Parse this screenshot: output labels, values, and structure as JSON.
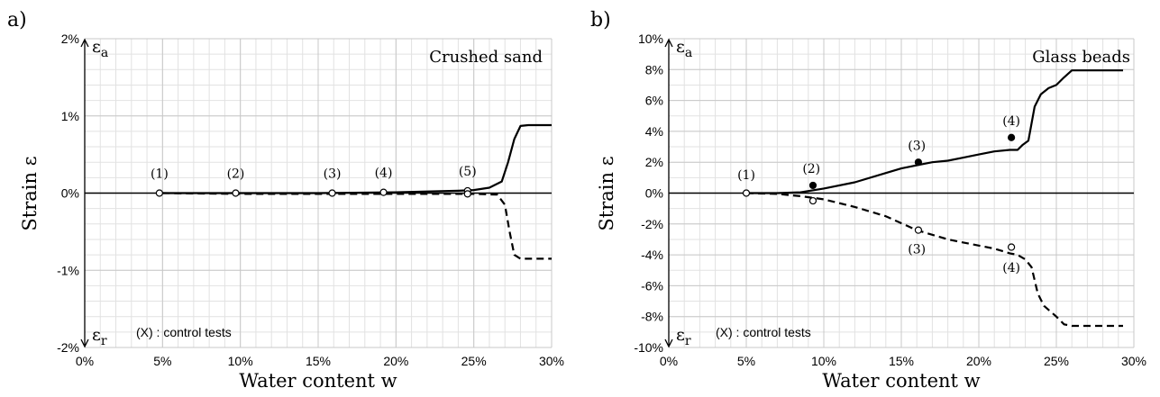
{
  "chart_data": [
    {
      "type": "line",
      "panel_label": "a)",
      "title": "Crushed sand",
      "xlabel": "Water content w",
      "ylabel": "Strain ε",
      "xlim": [
        0,
        30
      ],
      "ylim": [
        -2,
        2
      ],
      "x_ticks": [
        "0%",
        "5%",
        "10%",
        "15%",
        "20%",
        "25%",
        "30%"
      ],
      "y_ticks": [
        "-2%",
        "-1%",
        "0%",
        "1%",
        "2%"
      ],
      "y_tick_values": [
        -2,
        -1,
        0,
        1,
        2
      ],
      "minor_grid_x_step": 1,
      "minor_grid_y_step": 0.2,
      "top_axis_label": "ε",
      "top_axis_sub": "a",
      "bottom_axis_label": "ε",
      "bottom_axis_sub": "r",
      "note": "(X) : control tests",
      "series": [
        {
          "style": "solid",
          "x": [
            5,
            10,
            15,
            20,
            24,
            25,
            26,
            26.8,
            27.2,
            27.6,
            28,
            28.5,
            30
          ],
          "y": [
            0,
            0,
            0,
            0.01,
            0.03,
            0.04,
            0.07,
            0.15,
            0.4,
            0.7,
            0.87,
            0.88,
            0.88
          ]
        },
        {
          "style": "dashed",
          "x": [
            5,
            10,
            15,
            20,
            24,
            25,
            26.5,
            27,
            27.3,
            27.6,
            28,
            28.3,
            30
          ],
          "y": [
            0,
            -0.01,
            -0.01,
            -0.01,
            -0.01,
            -0.01,
            -0.02,
            -0.15,
            -0.5,
            -0.8,
            -0.85,
            -0.85,
            -0.85
          ]
        }
      ],
      "points": [
        {
          "x": 4.8,
          "y": 0,
          "filled": false
        },
        {
          "x": 9.7,
          "y": 0,
          "filled": false
        },
        {
          "x": 15.9,
          "y": 0,
          "filled": false
        },
        {
          "x": 19.2,
          "y": 0.01,
          "filled": false
        },
        {
          "x": 24.6,
          "y": 0.03,
          "filled": false
        },
        {
          "x": 24.6,
          "y": -0.01,
          "filled": false
        }
      ],
      "annotations": [
        {
          "text": "(1)",
          "x": 4.8,
          "y": 0.2
        },
        {
          "text": "(2)",
          "x": 9.7,
          "y": 0.2
        },
        {
          "text": "(3)",
          "x": 15.9,
          "y": 0.2
        },
        {
          "text": "(4)",
          "x": 19.2,
          "y": 0.21
        },
        {
          "text": "(5)",
          "x": 24.6,
          "y": 0.23
        }
      ]
    },
    {
      "type": "line",
      "panel_label": "b)",
      "title": "Glass beads",
      "xlabel": "Water content w",
      "ylabel": "Strain ε",
      "xlim": [
        0,
        30
      ],
      "ylim": [
        -10,
        10
      ],
      "x_ticks": [
        "0%",
        "5%",
        "10%",
        "15%",
        "20%",
        "25%",
        "30%"
      ],
      "y_ticks": [
        "-10%",
        "-8%",
        "-6%",
        "-4%",
        "-2%",
        "0%",
        "2%",
        "4%",
        "6%",
        "8%",
        "10%"
      ],
      "y_tick_values": [
        -10,
        -8,
        -6,
        -4,
        -2,
        0,
        2,
        4,
        6,
        8,
        10
      ],
      "minor_grid_x_step": 1,
      "minor_grid_y_step": 1,
      "top_axis_label": "ε",
      "top_axis_sub": "a",
      "bottom_axis_label": "ε",
      "bottom_axis_sub": "r",
      "note": "(X) : control tests",
      "series": [
        {
          "style": "solid",
          "x": [
            5,
            7,
            8.5,
            10,
            12,
            14,
            15,
            16,
            17,
            18,
            19,
            20,
            21,
            22,
            22.5,
            22.8,
            23.2,
            23.6,
            24,
            24.5,
            25,
            25.5,
            26,
            27,
            28,
            29.3
          ],
          "y": [
            0,
            0,
            0.05,
            0.3,
            0.7,
            1.3,
            1.6,
            1.8,
            2.0,
            2.1,
            2.3,
            2.5,
            2.7,
            2.8,
            2.8,
            3.1,
            3.4,
            5.6,
            6.4,
            6.8,
            7.0,
            7.5,
            7.95,
            7.95,
            7.95,
            7.95
          ]
        },
        {
          "style": "dashed",
          "x": [
            5,
            7,
            8.5,
            10,
            12,
            14,
            16,
            17,
            18,
            19,
            20,
            21,
            22,
            22.5,
            23,
            23.4,
            23.8,
            24.2,
            25,
            25.5,
            26,
            27,
            28,
            29.3
          ],
          "y": [
            0,
            -0.05,
            -0.2,
            -0.4,
            -0.9,
            -1.5,
            -2.4,
            -2.7,
            -3.0,
            -3.2,
            -3.4,
            -3.6,
            -3.9,
            -4.0,
            -4.3,
            -4.8,
            -6.5,
            -7.3,
            -8.0,
            -8.5,
            -8.6,
            -8.6,
            -8.6,
            -8.6
          ]
        }
      ],
      "points": [
        {
          "x": 5.0,
          "y": 0,
          "filled": false
        },
        {
          "x": 9.3,
          "y": 0.5,
          "filled": true
        },
        {
          "x": 9.3,
          "y": -0.5,
          "filled": false
        },
        {
          "x": 16.1,
          "y": 2.0,
          "filled": true
        },
        {
          "x": 16.1,
          "y": -2.4,
          "filled": false
        },
        {
          "x": 22.1,
          "y": 3.6,
          "filled": true
        },
        {
          "x": 22.1,
          "y": -3.5,
          "filled": false
        }
      ],
      "annotations": [
        {
          "text": "(1)",
          "x": 5.0,
          "y": 0.9
        },
        {
          "text": "(2)",
          "x": 9.2,
          "y": 1.3
        },
        {
          "text": "(3)",
          "x": 16.0,
          "y": 2.8
        },
        {
          "text": "(4)",
          "x": 22.1,
          "y": 4.4
        },
        {
          "text": "(3)",
          "x": 16.0,
          "y": -3.9
        },
        {
          "text": "(4)",
          "x": 22.1,
          "y": -5.1
        }
      ]
    }
  ]
}
